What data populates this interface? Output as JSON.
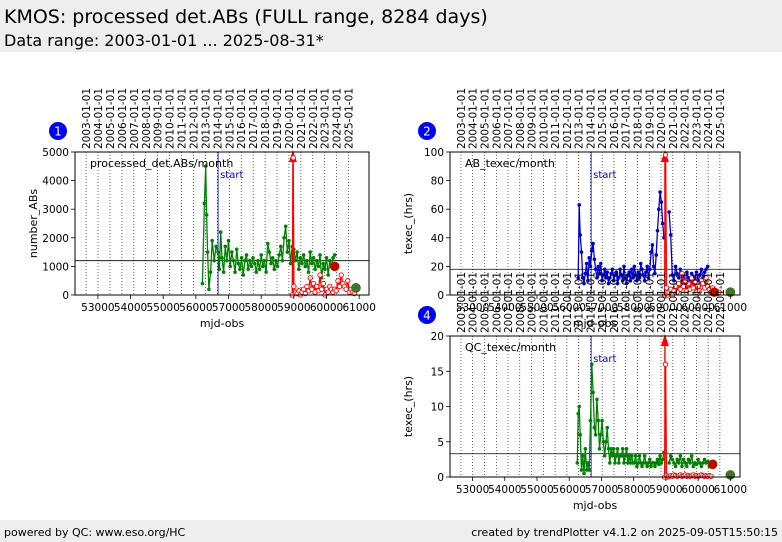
{
  "header": {
    "title": "KMOS: processed det.ABs (FULL range, 8284 days)",
    "subtitle": "Data range: 2003-01-01 ... 2025-08-31*"
  },
  "footer": {
    "left": "powered by QC: www.eso.org/HC",
    "right": "created by trendPlotter v4.1.2 on 2025-09-05T15:50:15"
  },
  "colors": {
    "header_bg": "#eeeeee",
    "green_series": "#008000",
    "red_series": "#ff0000",
    "blue_series": "#0000cc",
    "badge": "#0000ff",
    "marker_dark_green": "#2e7d32",
    "marker_red": "#cc0000"
  },
  "shared_axis": {
    "xlabel": "mjd-obs",
    "xlim": [
      52300,
      61300
    ],
    "xticks": [
      53000,
      54000,
      55000,
      56000,
      57000,
      58000,
      59000,
      60000,
      61000
    ],
    "year_labels": [
      "2003-01-01",
      "2004-01-01",
      "2005-01-01",
      "2006-01-01",
      "2007-01-01",
      "2008-01-01",
      "2009-01-01",
      "2010-01-01",
      "2011-01-01",
      "2012-01-01",
      "2013-01-01",
      "2014-01-01",
      "2015-01-01",
      "2016-01-01",
      "2017-01-01",
      "2018-01-01",
      "2019-01-01",
      "2020-01-01",
      "2021-01-01",
      "2022-01-01",
      "2023-01-01",
      "2024-01-01",
      "2025-01-01"
    ],
    "year_mjd": [
      52640,
      53005,
      53371,
      53736,
      54101,
      54466,
      54832,
      55197,
      55562,
      55927,
      56293,
      56658,
      57023,
      57388,
      57754,
      58119,
      58484,
      58849,
      59215,
      59580,
      59945,
      60310,
      60676
    ],
    "start_label": "start",
    "start_mjd": 56680,
    "event_mjd": 58970
  },
  "chart_data": [
    {
      "id": 1,
      "badge": "1",
      "type": "line",
      "panel_label": "processed_det.ABs/month",
      "ylabel": "number_ABs",
      "ylim": [
        0,
        5000
      ],
      "yticks": [
        0,
        1000,
        2000,
        3000,
        4000,
        5000
      ],
      "reference_line": 1200,
      "series": [
        {
          "name": "",
          "color": "#008000",
          "x": [
            56200,
            56260,
            56300,
            56330,
            56360,
            56400,
            56450,
            56500,
            56560,
            56620,
            56680,
            56720,
            56760,
            56800,
            56850,
            56900,
            56950,
            57000,
            57050,
            57100,
            57150,
            57200,
            57250,
            57300,
            57350,
            57400,
            57450,
            57500,
            57550,
            57600,
            57650,
            57700,
            57750,
            57800,
            57850,
            57900,
            57950,
            58000,
            58050,
            58100,
            58150,
            58200,
            58250,
            58300,
            58350,
            58400,
            58450,
            58500,
            58550,
            58600,
            58650,
            58700,
            58750,
            58800,
            58850,
            58900,
            58950
          ],
          "y": [
            400,
            3200,
            4500,
            2800,
            1500,
            200,
            800,
            1900,
            1200,
            1700,
            1500,
            900,
            2200,
            1300,
            800,
            1700,
            1200,
            1900,
            1000,
            1500,
            1200,
            800,
            1600,
            1100,
            900,
            1300,
            700,
            1200,
            1400,
            900,
            1200,
            1000,
            1300,
            1100,
            800,
            1200,
            900,
            1400,
            1000,
            1200,
            800,
            1800,
            1500,
            1100,
            1300,
            900,
            1200,
            1000,
            1400,
            1700,
            1200,
            2000,
            2400,
            1500,
            1900,
            1100,
            1700
          ]
        },
        {
          "name": "",
          "color": "#008000",
          "x": [
            59000,
            59050,
            59100,
            59150,
            59200,
            59250,
            59300,
            59350,
            59400,
            59450,
            59500,
            59550,
            59600,
            59650,
            59700,
            59750,
            59800,
            59850,
            59900,
            59950,
            60000,
            60050,
            60100,
            60150,
            60200,
            60250
          ],
          "y": [
            1600,
            1200,
            1500,
            900,
            1300,
            1100,
            1400,
            1000,
            1200,
            800,
            1500,
            1100,
            1300,
            900,
            1200,
            1000,
            1400,
            600,
            1100,
            900,
            1300,
            700,
            1200,
            1000,
            1300,
            1400
          ]
        },
        {
          "name": "",
          "color": "#ff0000",
          "x": [
            58950,
            58980,
            59000,
            59050,
            59100,
            59150,
            59200,
            59250,
            59300,
            59350,
            59400,
            59450,
            59500,
            59550,
            59600,
            59650,
            59700,
            59750,
            59800,
            59850,
            59900,
            59950,
            60000,
            60050,
            60100,
            60150,
            60200,
            60250,
            60300,
            60350,
            60400,
            60450,
            60500,
            60550,
            60600,
            60650,
            60700,
            60750,
            60800,
            60850
          ],
          "y": [
            0,
            4800,
            300,
            100,
            50,
            150,
            0,
            100,
            200,
            50,
            300,
            150,
            600,
            200,
            400,
            100,
            300,
            150,
            700,
            200,
            400,
            0,
            200,
            100,
            300,
            200,
            100,
            200,
            150,
            500,
            300,
            700,
            400,
            300,
            200,
            500,
            100,
            200,
            100,
            50
          ]
        }
      ],
      "end_markers": [
        {
          "x": 60250,
          "y": 1000,
          "color": "#cc0000"
        },
        {
          "x": 60900,
          "y": 250,
          "color": "#2e7d32"
        }
      ]
    },
    {
      "id": 2,
      "badge": "2",
      "type": "line",
      "panel_label": "AB_texec/month",
      "ylabel": "texec_(hrs)",
      "ylim": [
        0,
        100
      ],
      "yticks": [
        0,
        20,
        40,
        60,
        80,
        100
      ],
      "reference_line": 18,
      "series": [
        {
          "name": "",
          "color": "#0000cc",
          "x": [
            56280,
            56310,
            56340,
            56380,
            56420,
            56460,
            56500,
            56540,
            56580,
            56620,
            56660,
            56700,
            56740,
            56780,
            56820,
            56860,
            56900,
            56940,
            56980,
            57020,
            57060,
            57100,
            57140,
            57180,
            57220,
            57260,
            57300,
            57340,
            57380,
            57420,
            57460,
            57500,
            57540,
            57580,
            57620,
            57660,
            57700,
            57740,
            57780,
            57820,
            57860,
            57900,
            57940,
            57980,
            58020,
            58060,
            58100,
            58140,
            58180,
            58220,
            58260,
            58300,
            58340,
            58380,
            58420,
            58460,
            58500,
            58540,
            58580,
            58620,
            58660,
            58700,
            58740,
            58780,
            58820,
            58860,
            58900,
            58940
          ],
          "y": [
            12,
            63,
            42,
            30,
            12,
            8,
            15,
            22,
            10,
            26,
            20,
            31,
            36,
            25,
            18,
            12,
            20,
            15,
            22,
            10,
            14,
            18,
            12,
            16,
            8,
            12,
            15,
            18,
            10,
            14,
            16,
            8,
            12,
            18,
            14,
            10,
            20,
            12,
            8,
            14,
            16,
            10,
            18,
            12,
            20,
            14,
            10,
            16,
            12,
            22,
            18,
            14,
            10,
            16,
            20,
            12,
            18,
            30,
            35,
            20,
            15,
            28,
            45,
            60,
            72,
            65,
            50,
            40
          ]
        },
        {
          "name": "",
          "color": "#0000cc",
          "x": [
            59100,
            59150,
            59200,
            59250,
            59300,
            59350,
            59400,
            59450,
            59500,
            59550,
            59600,
            59650,
            59700,
            59750,
            59800,
            59850,
            59900,
            59950,
            60000,
            60050,
            60100,
            60150,
            60200,
            60250,
            60300
          ],
          "y": [
            58,
            42,
            14,
            10,
            20,
            15,
            12,
            18,
            10,
            14,
            8,
            16,
            12,
            10,
            15,
            8,
            12,
            16,
            10,
            14,
            18,
            12,
            16,
            18,
            20
          ]
        },
        {
          "name": "",
          "color": "#ff0000",
          "x": [
            58960,
            58990,
            59020,
            59060,
            59100,
            59150,
            59200,
            59250,
            59300,
            59350,
            59400,
            59450,
            59500,
            59550,
            59600,
            59650,
            59700,
            59750,
            59800,
            59850,
            59900,
            59950,
            60000,
            60050,
            60100,
            60150,
            60200,
            60250,
            60300,
            60350,
            60400,
            60450,
            60500,
            60550,
            60600,
            60650
          ],
          "y": [
            0,
            98,
            5,
            0,
            2,
            4,
            0,
            3,
            6,
            2,
            8,
            4,
            15,
            6,
            10,
            3,
            8,
            4,
            12,
            5,
            9,
            2,
            6,
            3,
            10,
            8,
            5,
            12,
            6,
            4,
            2,
            5,
            3,
            2,
            1,
            2
          ]
        }
      ],
      "end_markers": [
        {
          "x": 60500,
          "y": 2,
          "color": "#cc0000"
        },
        {
          "x": 61000,
          "y": 2,
          "color": "#2e7d32"
        }
      ]
    },
    {
      "id": 4,
      "badge": "4",
      "type": "line",
      "panel_label": "QC_texec/month",
      "ylabel": "texec_(hrs)",
      "ylim": [
        0,
        20
      ],
      "yticks": [
        0,
        5,
        10,
        15,
        20
      ],
      "reference_line": 3.3,
      "series": [
        {
          "name": "",
          "color": "#008000",
          "x": [
            56250,
            56280,
            56310,
            56340,
            56380,
            56420,
            56460,
            56500,
            56540,
            56580,
            56620,
            56660,
            56700,
            56740,
            56780,
            56820,
            56860,
            56900,
            56940,
            56980,
            57020,
            57060,
            57100,
            57140,
            57180,
            57220,
            57260,
            57300,
            57340,
            57380,
            57420,
            57460,
            57500,
            57540,
            57580,
            57620,
            57660,
            57700,
            57740,
            57780,
            57820,
            57860,
            57900,
            57940,
            57980,
            58020,
            58060,
            58100,
            58140,
            58180,
            58220,
            58260,
            58300,
            58340,
            58380,
            58420,
            58460,
            58500,
            58540,
            58580,
            58620,
            58660,
            58700,
            58740,
            58780,
            58820,
            58860,
            58900,
            58940
          ],
          "y": [
            2,
            9,
            10,
            6,
            1,
            3,
            0.5,
            4,
            1,
            2,
            1,
            8,
            16,
            12,
            7,
            6,
            11,
            8,
            4,
            6,
            8,
            5,
            3,
            5,
            7,
            4,
            2,
            4,
            3,
            4,
            2,
            3,
            4,
            2,
            3,
            3,
            4,
            2,
            3,
            4,
            2,
            3,
            2,
            3,
            2,
            2,
            3,
            1.5,
            2,
            3,
            2,
            1.5,
            2,
            3,
            2,
            1.5,
            2,
            2.5,
            1.5,
            2,
            2,
            1.5,
            2,
            2.5,
            1.8,
            3,
            2,
            2.5,
            3.5
          ]
        },
        {
          "name": "",
          "color": "#008000",
          "x": [
            59100,
            59150,
            59200,
            59250,
            59300,
            59350,
            59400,
            59450,
            59500,
            59550,
            59600,
            59650,
            59700,
            59750,
            59800,
            59850,
            59900,
            59950,
            60000,
            60050,
            60100,
            60150,
            60200,
            60250,
            60300,
            60350
          ],
          "y": [
            2,
            3,
            2.5,
            2,
            1.5,
            2.5,
            2,
            3,
            1.5,
            2.5,
            2,
            1.5,
            2.5,
            2,
            3,
            1.5,
            2,
            1.8,
            2.5,
            2,
            1.5,
            2,
            2.5,
            2,
            2.2,
            1.5
          ]
        },
        {
          "name": "",
          "color": "#ff0000",
          "x": [
            58960,
            58990,
            59020,
            59060,
            59100,
            59150,
            59200,
            59250,
            59300,
            59350,
            59400,
            59450,
            59500,
            59550,
            59600,
            59650,
            59700,
            59750,
            59800,
            59850,
            59900,
            59950,
            60000,
            60050,
            60100,
            60150,
            60200,
            60250,
            60300,
            60350,
            60400
          ],
          "y": [
            0,
            16,
            0.2,
            0,
            0.1,
            0.2,
            0.1,
            0.3,
            0.2,
            0.1,
            0.2,
            0.3,
            0.1,
            0.2,
            0.3,
            0.1,
            0.2,
            0.1,
            0.2,
            0.3,
            0.1,
            0.2,
            0.1,
            0.2,
            0.3,
            0.2,
            0.1,
            0.2,
            0.1,
            0.2,
            0.1
          ]
        }
      ],
      "end_markers": [
        {
          "x": 60450,
          "y": 1.8,
          "color": "#cc0000"
        },
        {
          "x": 61000,
          "y": 0.3,
          "color": "#2e7d32"
        }
      ]
    }
  ]
}
